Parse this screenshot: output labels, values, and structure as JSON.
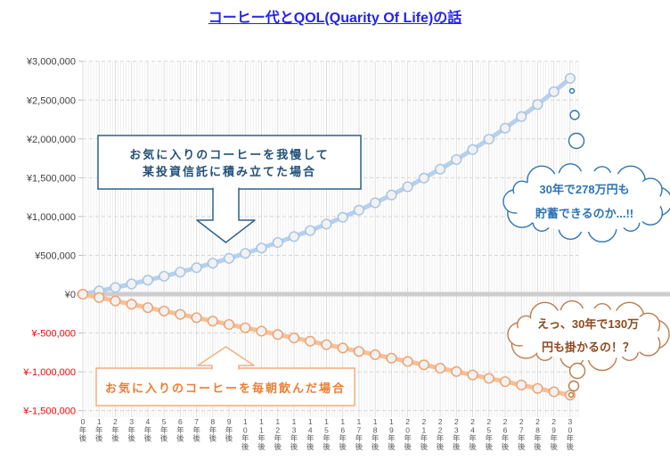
{
  "title": "コーヒー代とQOL(Quarity Of Life)の話",
  "title_color": "#2323f0",
  "chart_data": {
    "type": "line",
    "title": "コーヒー代とQOL(Quarity Of Life)の話",
    "xlabel": "",
    "ylabel": "",
    "ylim": [
      -1500000,
      3000000
    ],
    "grid": "horizontal dashed every 500000; vertical per year with minor subdivisions",
    "legend_position": "none",
    "x": [
      0,
      1,
      2,
      3,
      4,
      5,
      6,
      7,
      8,
      9,
      10,
      11,
      12,
      13,
      14,
      15,
      16,
      17,
      18,
      19,
      20,
      21,
      22,
      23,
      24,
      25,
      26,
      27,
      28,
      29,
      30
    ],
    "x_labels": [
      "0年後",
      "1年後",
      "2年後",
      "3年後",
      "4年後",
      "5年後",
      "6年後",
      "7年後",
      "8年後",
      "9年後",
      "10年後",
      "11年後",
      "12年後",
      "13年後",
      "14年後",
      "15年後",
      "16年後",
      "17年後",
      "18年後",
      "19年後",
      "20年後",
      "21年後",
      "22年後",
      "23年後",
      "24年後",
      "25年後",
      "26年後",
      "27年後",
      "28年後",
      "29年後",
      "30年後"
    ],
    "y_ticks": [
      {
        "label": "¥3,000,000",
        "value": 3000000,
        "color": "#3f3f3f"
      },
      {
        "label": "¥2,500,000",
        "value": 2500000,
        "color": "#3f3f3f"
      },
      {
        "label": "¥2,000,000",
        "value": 2000000,
        "color": "#3f3f3f"
      },
      {
        "label": "¥1,500,000",
        "value": 1500000,
        "color": "#3f3f3f"
      },
      {
        "label": "¥1,000,000",
        "value": 1000000,
        "color": "#3f3f3f"
      },
      {
        "label": "¥500,000",
        "value": 500000,
        "color": "#3f3f3f"
      },
      {
        "label": "¥0",
        "value": 0,
        "color": "#3f3f3f"
      },
      {
        "label": "¥-500,000",
        "value": -500000,
        "color": "#ff0000"
      },
      {
        "label": "¥-1,000,000",
        "value": -1000000,
        "color": "#ff0000"
      },
      {
        "label": "¥-1,500,000",
        "value": -1500000,
        "color": "#ff0000"
      }
    ],
    "series": [
      {
        "name": "お気に入りのコーヒーを我慢して某投資信託に積み立てた場合",
        "line_color": "#b7d0ec",
        "marker_stroke": "#a3c4e6",
        "marker_fill": "#f2f1f1",
        "values": [
          0,
          41800,
          85800,
          131900,
          180300,
          231200,
          284600,
          340700,
          399600,
          461400,
          526300,
          594500,
          666000,
          741200,
          820100,
          902900,
          989900,
          1081200,
          1177100,
          1277800,
          1383600,
          1494600,
          1611200,
          1733600,
          1862100,
          1997000,
          2138700,
          2287500,
          2443700,
          2607800,
          2780000
        ]
      },
      {
        "name": "お気に入りのコーヒーを毎朝飲んだ場合",
        "line_color": "#f6c097",
        "marker_stroke": "#eda06b",
        "marker_fill": "#f2f1f1",
        "values": [
          0,
          -43300,
          -86700,
          -130000,
          -173300,
          -216700,
          -260000,
          -303300,
          -346700,
          -390000,
          -433300,
          -476700,
          -520000,
          -563300,
          -606700,
          -650000,
          -693300,
          -736700,
          -780000,
          -823300,
          -866700,
          -910000,
          -953300,
          -996700,
          -1040000,
          -1083300,
          -1126700,
          -1170000,
          -1213300,
          -1256700,
          -1300000
        ]
      }
    ]
  },
  "annotations": {
    "investment_callout": {
      "line1": "お気に入りのコーヒーを我慢して",
      "line2": "某投資信託に積み立てた場合",
      "border_color": "#2e618c",
      "text_color": "#215079"
    },
    "coffee_callout": {
      "text": "お気に入りのコーヒーを毎朝飲んだ場合",
      "border_color": "#f4b183",
      "text_color": "#ed7d31"
    },
    "savings_cloud": {
      "line1": "30年で278万円も",
      "line2": "貯蓄できるのか...!!",
      "border_color": "#2e74b5",
      "text_color": "#2e74b5"
    },
    "cost_cloud": {
      "line1": "えっ、30年で130万",
      "line2": "円も掛かるの！？",
      "border_color": "#bd7b4a",
      "text_color": "#8f4a1e"
    }
  }
}
